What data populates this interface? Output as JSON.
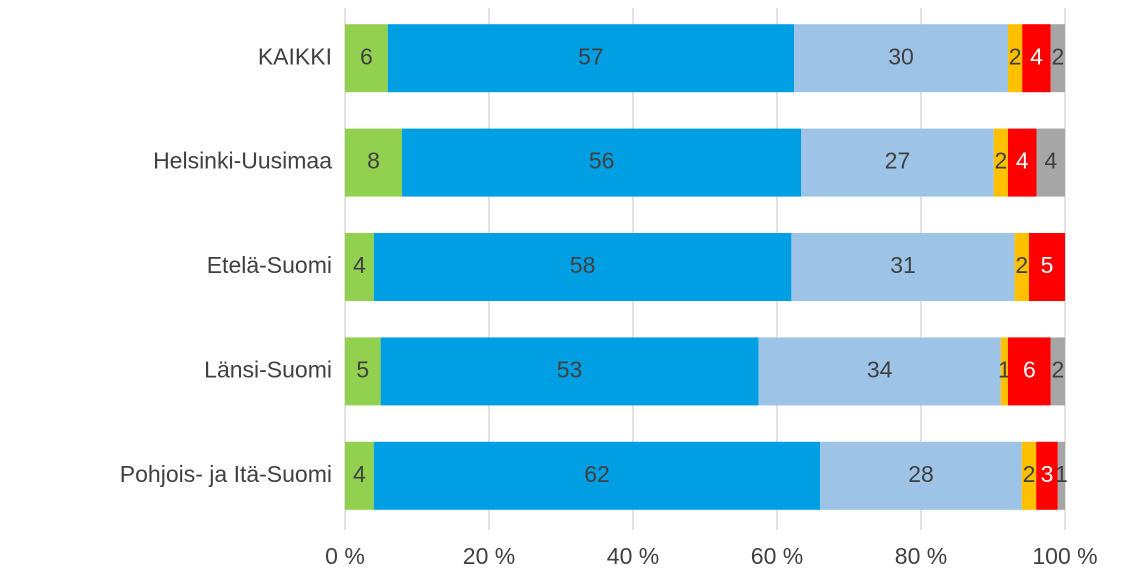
{
  "chart_data": {
    "type": "bar",
    "orientation": "horizontal",
    "stacking": "percent",
    "categories": [
      "KAIKKI",
      "Helsinki-Uusimaa",
      "Etelä-Suomi",
      "Länsi-Suomi",
      "Pohjois- ja Itä-Suomi"
    ],
    "series": [
      {
        "color": "#92d050",
        "label_color": "#404040",
        "values": [
          6,
          8,
          4,
          5,
          4
        ]
      },
      {
        "color": "#009fe3",
        "label_color": "#404040",
        "values": [
          57,
          56,
          58,
          53,
          62
        ]
      },
      {
        "color": "#9dc3e6",
        "label_color": "#404040",
        "values": [
          30,
          27,
          31,
          34,
          28
        ]
      },
      {
        "color": "#ffc000",
        "label_color": "#404040",
        "values": [
          2,
          2,
          2,
          1,
          2
        ]
      },
      {
        "color": "#ff0000",
        "label_color": "#ffffff",
        "values": [
          4,
          4,
          5,
          6,
          3
        ]
      },
      {
        "color": "#a6a6a6",
        "label_color": "#404040",
        "values": [
          2,
          4,
          null,
          2,
          1
        ]
      }
    ],
    "xlim": [
      0,
      100
    ],
    "xticks": [
      {
        "value": 0,
        "label": "0 %"
      },
      {
        "value": 20,
        "label": "20 %"
      },
      {
        "value": 40,
        "label": "40 %"
      },
      {
        "value": 60,
        "label": "60 %"
      },
      {
        "value": 80,
        "label": "80 %"
      },
      {
        "value": 100,
        "label": "100 %"
      }
    ],
    "grid": true
  }
}
